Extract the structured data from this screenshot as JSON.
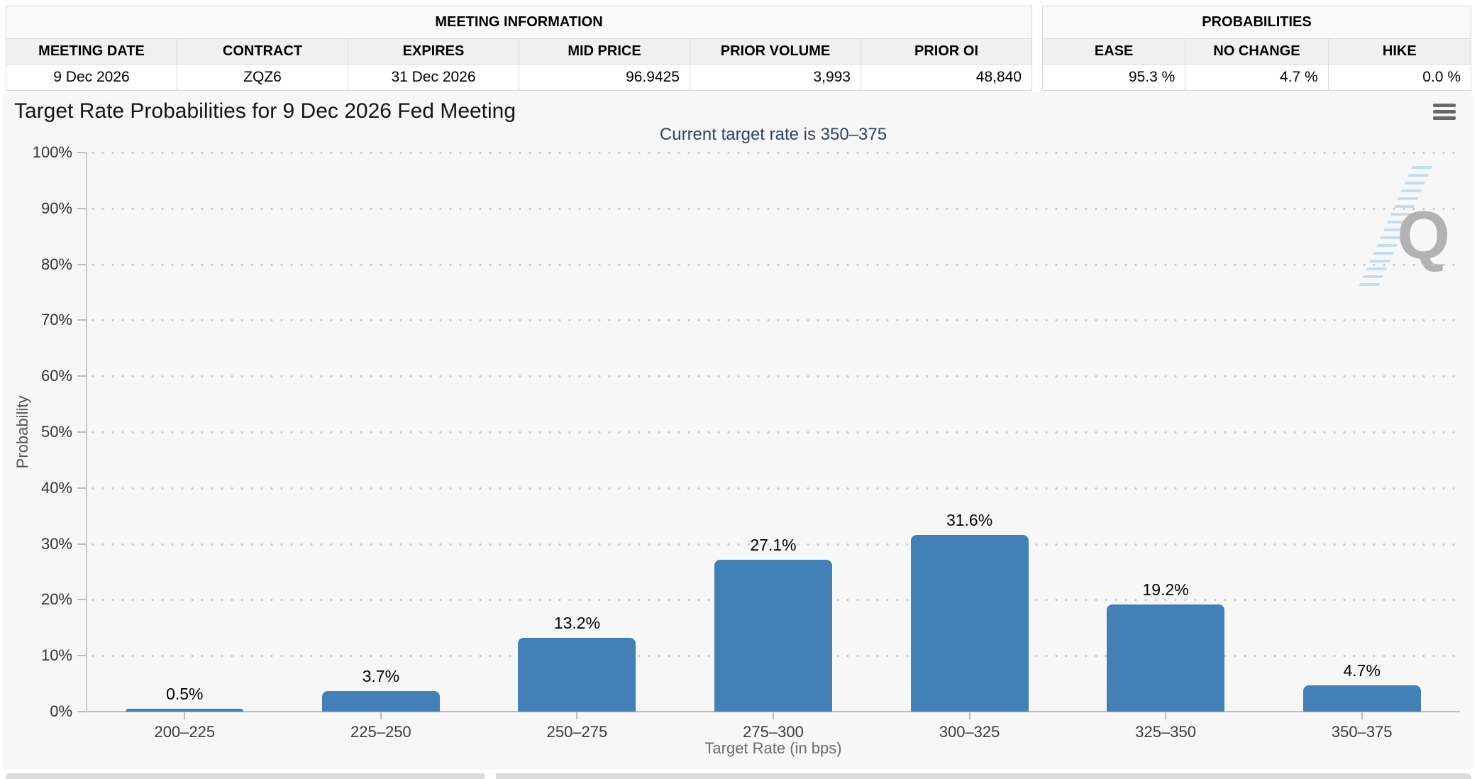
{
  "meeting_information": {
    "title": "MEETING INFORMATION",
    "headers": [
      "MEETING DATE",
      "CONTRACT",
      "EXPIRES",
      "MID PRICE",
      "PRIOR VOLUME",
      "PRIOR OI"
    ],
    "values": [
      "9 Dec 2026",
      "ZQZ6",
      "31 Dec 2026",
      "96.9425",
      "3,993",
      "48,840"
    ]
  },
  "probabilities": {
    "title": "PROBABILITIES",
    "headers": [
      "EASE",
      "NO CHANGE",
      "HIKE"
    ],
    "values": [
      "95.3 %",
      "4.7 %",
      "0.0 %"
    ]
  },
  "chart": {
    "title": "Target Rate Probabilities for 9 Dec 2026 Fed Meeting",
    "subtitle": "Current target rate is 350–375",
    "menu_icon": "hamburger-menu-icon",
    "watermark_letter": "Q"
  },
  "chart_data": {
    "type": "bar",
    "title": "Target Rate Probabilities for 9 Dec 2026 Fed Meeting",
    "subtitle": "Current target rate is 350–375",
    "categories": [
      "200–225",
      "225–250",
      "250–275",
      "275–300",
      "300–325",
      "325–350",
      "350–375"
    ],
    "values": [
      0.5,
      3.7,
      13.2,
      27.1,
      31.6,
      19.2,
      4.7
    ],
    "xlabel": "Target Rate (in bps)",
    "ylabel": "Probability",
    "ylim": [
      0,
      100
    ],
    "y_ticks": [
      0,
      10,
      20,
      30,
      40,
      50,
      60,
      70,
      80,
      90,
      100
    ],
    "grid": "dotted-horizontal",
    "legend": "none",
    "bar_color": "#4380b8",
    "value_label_suffix": "%"
  },
  "colors": {
    "panel_bg": "#f7f7f7",
    "bar": "#4380b8",
    "subtitle": "#2e4069",
    "axis_line": "#bdbdbd",
    "grid_dot": "#cbcbcb",
    "watermark_gray": "#b2b2b2",
    "watermark_blue": "#b9d9f3"
  }
}
